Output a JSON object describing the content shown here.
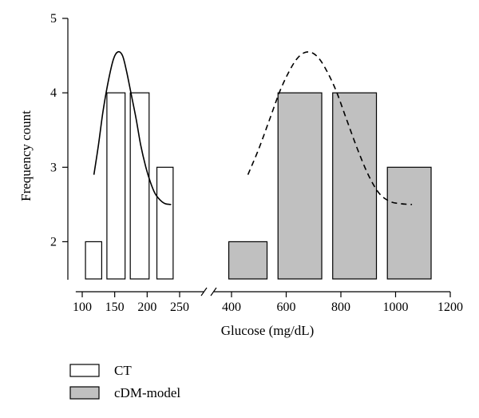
{
  "chart_data": {
    "type": "bar",
    "title": "",
    "xlabel": "Glucose (mg/dL)",
    "ylabel": "Frequency count",
    "ylim": [
      1.5,
      5
    ],
    "yticks": [
      2,
      3,
      4,
      5
    ],
    "x_axis_broken": true,
    "xlim_left_segment": [
      90,
      270
    ],
    "xlim_right_segment": [
      340,
      1200
    ],
    "xticks_left": [
      100,
      150,
      200,
      250
    ],
    "xticks_right": [
      400,
      600,
      800,
      1000,
      1200
    ],
    "legend_position": "bottom-left",
    "colors": {
      "CT": "#ffffff",
      "cDM-model": "#c0c0c0"
    },
    "series": [
      {
        "name": "CT",
        "fill": "#ffffff",
        "bars": [
          {
            "x0": 105,
            "x1": 130,
            "value": 2
          },
          {
            "x0": 138,
            "x1": 166,
            "value": 4
          },
          {
            "x0": 174,
            "x1": 203,
            "value": 4
          },
          {
            "x0": 215,
            "x1": 240,
            "value": 3
          }
        ],
        "fit_curve": {
          "style": "solid",
          "x": [
            118,
            125,
            132,
            140,
            148,
            155,
            162,
            168,
            175,
            183,
            190,
            198,
            205,
            212,
            220,
            228,
            237
          ],
          "y": [
            2.9,
            3.3,
            3.75,
            4.15,
            4.45,
            4.55,
            4.5,
            4.3,
            4.0,
            3.65,
            3.3,
            3.0,
            2.8,
            2.65,
            2.56,
            2.51,
            2.5
          ]
        }
      },
      {
        "name": "cDM-model",
        "fill": "#c0c0c0",
        "bars": [
          {
            "x0": 390,
            "x1": 530,
            "value": 2
          },
          {
            "x0": 570,
            "x1": 730,
            "value": 4
          },
          {
            "x0": 770,
            "x1": 930,
            "value": 4
          },
          {
            "x0": 970,
            "x1": 1130,
            "value": 3
          }
        ],
        "fit_curve": {
          "style": "dashed",
          "x": [
            460,
            500,
            540,
            580,
            620,
            650,
            680,
            710,
            740,
            780,
            820,
            860,
            900,
            940,
            980,
            1020,
            1060
          ],
          "y": [
            2.9,
            3.25,
            3.65,
            4.05,
            4.35,
            4.5,
            4.55,
            4.5,
            4.35,
            4.05,
            3.65,
            3.25,
            2.9,
            2.65,
            2.54,
            2.51,
            2.5
          ]
        }
      }
    ]
  }
}
